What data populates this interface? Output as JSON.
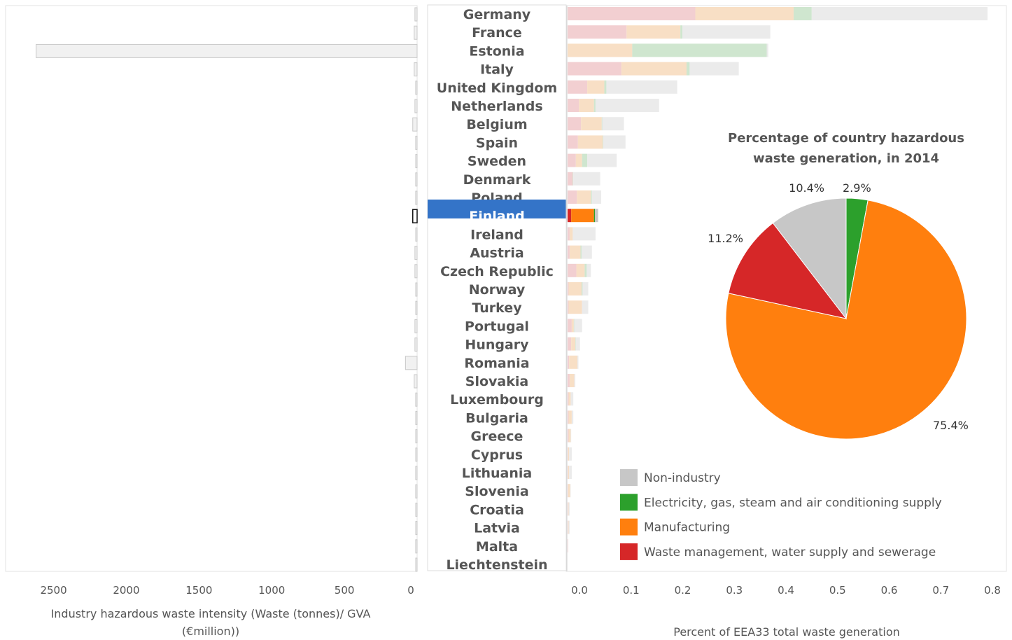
{
  "chart_data": [
    {
      "type": "bar",
      "orientation": "horizontal",
      "xlabel": "Industry hazardous waste intensity (Waste (tonnes)/ GVA (€million))",
      "xlim": [
        2700,
        0
      ],
      "ticks": [
        2500,
        2000,
        1500,
        1000,
        500,
        0
      ],
      "categories": [
        "Germany",
        "France",
        "Estonia",
        "Italy",
        "United Kingdom",
        "Netherlands",
        "Belgium",
        "Spain",
        "Sweden",
        "Denmark",
        "Poland",
        "Finland",
        "Ireland",
        "Austria",
        "Czech Republic",
        "Norway",
        "Turkey",
        "Portugal",
        "Hungary",
        "Romania",
        "Slovakia",
        "Luxembourg",
        "Bulgaria",
        "Greece",
        "Cyprus",
        "Lithuania",
        "Slovenia",
        "Croatia",
        "Latvia",
        "Malta",
        "Liechtenstein"
      ],
      "values": [
        15,
        20,
        2620,
        20,
        10,
        15,
        30,
        10,
        8,
        10,
        10,
        30,
        5,
        15,
        15,
        8,
        5,
        15,
        15,
        80,
        20,
        10,
        5,
        8,
        5,
        10,
        10,
        5,
        5,
        10,
        5
      ],
      "highlight": "Finland"
    },
    {
      "type": "bar",
      "stacked": true,
      "orientation": "horizontal",
      "xlabel": "Percent of EEA33 total waste generation",
      "xlim": [
        0,
        0.84
      ],
      "ticks": [
        "0.0",
        "0.1",
        "0.2",
        "0.3",
        "0.4",
        "0.5",
        "0.6",
        "0.7",
        "0.8"
      ],
      "categories": [
        "Germany",
        "France",
        "Estonia",
        "Italy",
        "United Kingdom",
        "Netherlands",
        "Belgium",
        "Spain",
        "Sweden",
        "Denmark",
        "Poland",
        "Finland",
        "Ireland",
        "Austria",
        "Czech Republic",
        "Norway",
        "Turkey",
        "Portugal",
        "Hungary",
        "Romania",
        "Slovakia",
        "Luxembourg",
        "Bulgaria",
        "Greece",
        "Cyprus",
        "Lithuania",
        "Slovenia",
        "Croatia",
        "Latvia",
        "Malta",
        "Liechtenstein"
      ],
      "series": [
        {
          "name": "Waste management, water supply and sewerage",
          "values": [
            0.247,
            0.114,
            0,
            0.104,
            0.038,
            0.022,
            0.026,
            0.02,
            0.016,
            0.01,
            0.018,
            0.007,
            0.004,
            0.004,
            0.017,
            0.002,
            0.002,
            0.008,
            0.007,
            0.003,
            0.004,
            0.002,
            0.002,
            0.002,
            0.001,
            0.001,
            0.001,
            0.001,
            0.001,
            0.001,
            0
          ]
        },
        {
          "name": "Manufacturing",
          "values": [
            0.19,
            0.104,
            0.125,
            0.126,
            0.033,
            0.029,
            0.04,
            0.048,
            0.012,
            0,
            0.027,
            0.044,
            0.006,
            0.021,
            0.016,
            0.025,
            0.026,
            0.004,
            0.008,
            0.016,
            0.009,
            0.004,
            0.006,
            0.004,
            0.002,
            0.002,
            0.004,
            0.001,
            0.001,
            0,
            0
          ]
        },
        {
          "name": "Electricity, gas, steam and air conditioning supply",
          "values": [
            0.035,
            0.004,
            0.26,
            0.006,
            0.004,
            0.003,
            0.001,
            0.001,
            0.01,
            0.001,
            0.002,
            0.002,
            0,
            0.002,
            0.004,
            0.002,
            0,
            0.001,
            0.001,
            0,
            0,
            0,
            0,
            0,
            0,
            0,
            0,
            0,
            0,
            0,
            0
          ]
        },
        {
          "name": "Non-industry",
          "values": [
            0.34,
            0.17,
            0.003,
            0.095,
            0.137,
            0.123,
            0.042,
            0.043,
            0.057,
            0.052,
            0.018,
            0.006,
            0.044,
            0.02,
            0.008,
            0.011,
            0.012,
            0.015,
            0.008,
            0.002,
            0.002,
            0.005,
            0.003,
            0.001,
            0.005,
            0.005,
            0.001,
            0.002,
            0.002,
            0,
            0
          ]
        }
      ],
      "highlight": "Finland"
    },
    {
      "type": "pie",
      "title": "Percentage of country hazardous waste generation, in 2014",
      "title_lines": [
        "Percentage of country hazardous",
        "waste generation, in 2014"
      ],
      "slices": [
        {
          "label": "Electricity, gas, steam and air conditioning supply",
          "value": 2.9,
          "text": "2.9%"
        },
        {
          "label": "Manufacturing",
          "value": 75.4,
          "text": "75.4%"
        },
        {
          "label": "Waste management, water supply and sewerage",
          "value": 11.2,
          "text": "11.2%"
        },
        {
          "label": "Non-industry",
          "value": 10.4,
          "text": "10.4%"
        }
      ]
    }
  ],
  "left_axis": {
    "label_lines": [
      "Industry hazardous waste intensity (Waste (tonnes)/ GVA",
      "(€million))"
    ]
  },
  "legend": {
    "placement": "bottom-right",
    "items": [
      {
        "label": "Non-industry",
        "color": "#c7c7c7"
      },
      {
        "label": "Electricity, gas, steam and air conditioning supply",
        "color": "#2ca02c"
      },
      {
        "label": "Manufacturing",
        "color": "#ff7f0e"
      },
      {
        "label": "Waste management, water supply and sewerage",
        "color": "#d62728"
      }
    ]
  },
  "colors": {
    "highlight_bg": "#3474c8",
    "waste_mgmt": "#d62728",
    "manufacturing": "#ff7f0e",
    "electricity": "#2ca02c",
    "non_industry": "#c7c7c7",
    "waste_mgmt_faded": "#f2cfd1",
    "manufacturing_faded": "#f8dfc5",
    "electricity_faded": "#cfe6cf",
    "non_industry_faded": "#ebebeb"
  }
}
